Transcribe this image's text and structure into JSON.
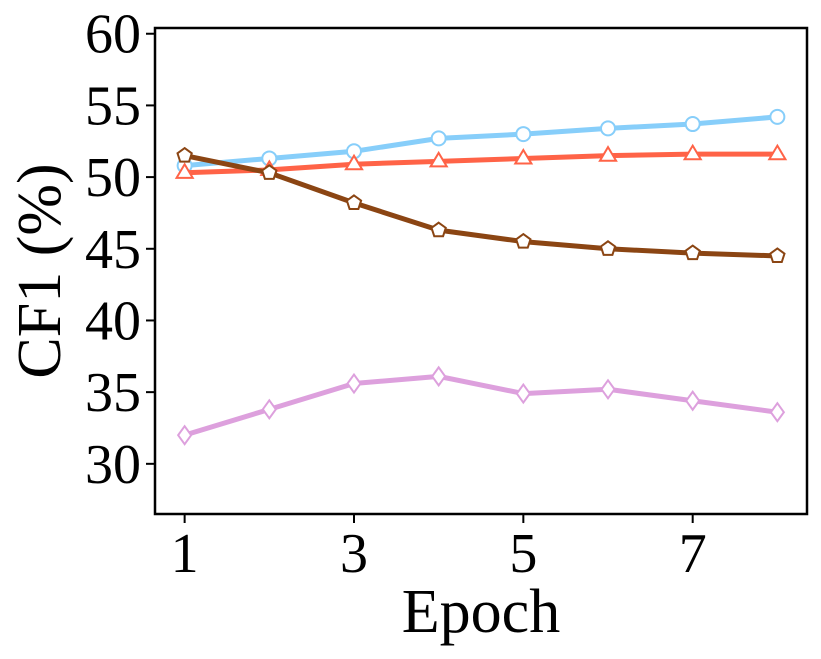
{
  "chart_data": {
    "type": "line",
    "title": "",
    "xlabel": "Epoch",
    "ylabel": "CF1 (%)",
    "x": [
      1,
      2,
      3,
      4,
      5,
      6,
      7,
      8
    ],
    "xticks": [
      1,
      3,
      5,
      7
    ],
    "xtick_labels": [
      "1",
      "3",
      "5",
      "7"
    ],
    "yticks": [
      30,
      35,
      40,
      45,
      50,
      55,
      60
    ],
    "ytick_labels": [
      "30",
      "35",
      "40",
      "45",
      "50",
      "55",
      "60"
    ],
    "xlim": [
      0.65,
      8.35
    ],
    "ylim": [
      26.5,
      60.4
    ],
    "grid": false,
    "legend": "none",
    "series": [
      {
        "color": "#87CEFA",
        "marker": "circle",
        "values": [
          50.8,
          51.3,
          51.8,
          52.7,
          53.0,
          53.4,
          53.7,
          54.2
        ]
      },
      {
        "color": "#FF6347",
        "marker": "triangle",
        "values": [
          50.3,
          50.5,
          50.9,
          51.1,
          51.3,
          51.5,
          51.6,
          51.6
        ]
      },
      {
        "color": "#8B4513",
        "marker": "pentagon",
        "values": [
          51.5,
          50.3,
          48.2,
          46.3,
          45.5,
          45.0,
          44.7,
          44.5
        ]
      },
      {
        "color": "#DDA0DD",
        "marker": "diamond",
        "values": [
          32.0,
          33.8,
          35.6,
          36.1,
          34.9,
          35.2,
          34.4,
          33.6
        ]
      }
    ]
  }
}
